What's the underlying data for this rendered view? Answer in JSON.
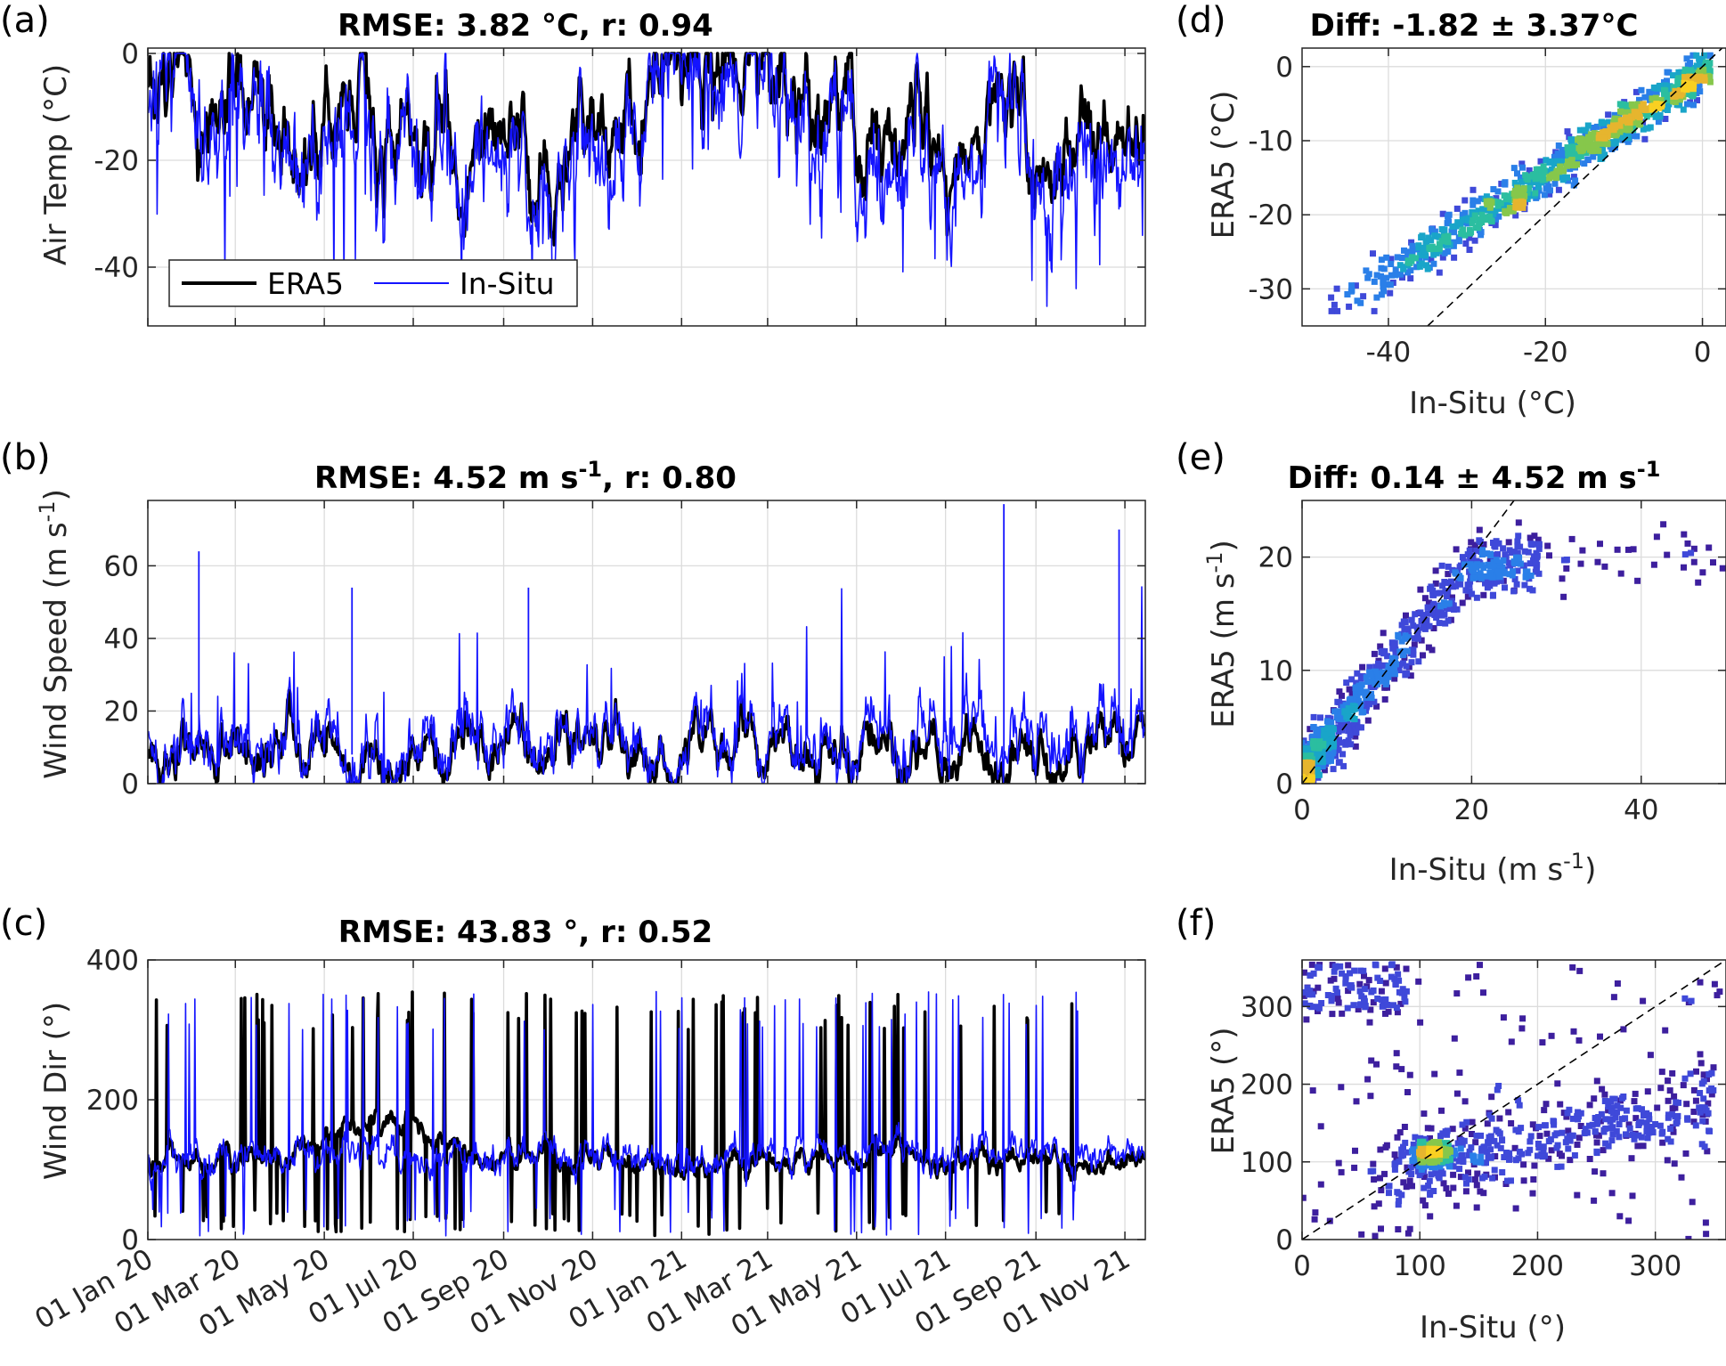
{
  "colors": {
    "era5": "#000000",
    "insitu": "#1414ff",
    "refline": "#000000",
    "density": [
      "#3d1f9e",
      "#3f49d9",
      "#2a7fe8",
      "#19a5c9",
      "#2bbea0",
      "#86c74b",
      "#e6b52e",
      "#f9d022"
    ]
  },
  "panels": {
    "a": {
      "label": "(a)",
      "title": "RMSE: 3.82 °C, r: 0.94",
      "ylabel": "Air Temp (°C)"
    },
    "b": {
      "label": "(b)",
      "title_main": "RMSE: 4.52 m s",
      "title_sup": "-1",
      "title_tail": ", r: 0.80",
      "ylabel_main": "Wind Speed (m s",
      "ylabel_sup": "-1",
      "ylabel_tail": ")"
    },
    "c": {
      "label": "(c)",
      "title": "RMSE: 43.83 °, r: 0.52",
      "ylabel": "Wind Dir (°)"
    },
    "d": {
      "label": "(d)",
      "title": "Diff: -1.82 ± 3.37°C",
      "xlabel": "In-Situ (°C)",
      "ylabel": "ERA5 (°C)"
    },
    "e": {
      "label": "(e)",
      "title_main": "Diff: 0.14 ± 4.52 m s",
      "title_sup": "-1",
      "xlabel_main": "In-Situ (m s",
      "xlabel_sup": "-1",
      "xlabel_tail": ")",
      "ylabel_main": "ERA5 (m s",
      "ylabel_sup": "-1",
      "ylabel_tail": ")"
    },
    "f": {
      "label": "(f)",
      "xlabel": "In-Situ (°)",
      "ylabel": "ERA5 (°)"
    }
  },
  "legend": {
    "era5": "ERA5",
    "insitu": "In-Situ"
  },
  "chart_data": [
    {
      "id": "a",
      "type": "line",
      "title": "RMSE: 3.82 °C, r: 0.94",
      "ylabel": "Air Temp (°C)",
      "xlim": [
        "2020-01-01",
        "2021-11-15"
      ],
      "ylim": [
        -51,
        1
      ],
      "yticks": [
        0,
        -20,
        -40
      ],
      "ytick_labels": [
        "0",
        "-20",
        "-40"
      ],
      "x": [
        "2020-01-01",
        "2020-02-15",
        "2020-04-01",
        "2020-05-15",
        "2020-07-01",
        "2020-08-15",
        "2020-10-01",
        "2020-11-15",
        "2021-01-01",
        "2021-02-15",
        "2021-04-01",
        "2021-05-15",
        "2021-07-01",
        "2021-08-15",
        "2021-10-01",
        "2021-11-15"
      ],
      "series": [
        {
          "name": "ERA5",
          "values": [
            -3,
            -10,
            -14,
            -12,
            -14,
            -18,
            -20,
            -15,
            -2,
            -4,
            -12,
            -16,
            -18,
            -14,
            -20,
            -10
          ]
        },
        {
          "name": "In-Situ",
          "values": [
            -3,
            -12,
            -18,
            -15,
            -16,
            -21,
            -25,
            -18,
            -3,
            -6,
            -15,
            -22,
            -22,
            -16,
            -26,
            -13
          ]
        }
      ],
      "legend": {
        "entries": [
          "ERA5",
          "In-Situ"
        ],
        "placement": "bottom-left"
      }
    },
    {
      "id": "b",
      "type": "line",
      "title": "RMSE: 4.52 m s-1, r: 0.80",
      "ylabel": "Wind Speed (m s-1)",
      "xlim": [
        "2020-01-01",
        "2021-11-15"
      ],
      "ylim": [
        0,
        78
      ],
      "yticks": [
        0,
        20,
        40,
        60
      ],
      "ytick_labels": [
        "0",
        "20",
        "40",
        "60"
      ],
      "x": [
        "2020-01-01",
        "2020-02-15",
        "2020-04-01",
        "2020-05-15",
        "2020-07-01",
        "2020-08-15",
        "2020-10-01",
        "2020-11-15",
        "2021-01-01",
        "2021-02-15",
        "2021-04-01",
        "2021-05-15",
        "2021-07-01",
        "2021-08-15",
        "2021-10-01",
        "2021-11-15"
      ],
      "series": [
        {
          "name": "ERA5",
          "values": [
            8,
            9,
            12,
            8,
            7,
            10,
            11,
            9,
            8,
            9,
            10,
            10,
            8,
            9,
            10,
            14
          ]
        },
        {
          "name": "In-Situ",
          "values": [
            8,
            10,
            14,
            10,
            9,
            12,
            12,
            10,
            9,
            10,
            12,
            12,
            14,
            16,
            13,
            15
          ]
        }
      ],
      "peaks_insitu": [
        {
          "x": "2020-02-05",
          "y": 64
        },
        {
          "x": "2020-05-20",
          "y": 54
        },
        {
          "x": "2020-09-18",
          "y": 54
        },
        {
          "x": "2021-08-10",
          "y": 77
        },
        {
          "x": "2021-10-28",
          "y": 70
        }
      ]
    },
    {
      "id": "c",
      "type": "line",
      "title": "RMSE: 43.83 °, r: 0.52",
      "ylabel": "Wind Dir (°)",
      "xlim": [
        "2020-01-01",
        "2021-11-15"
      ],
      "ylim": [
        0,
        400
      ],
      "yticks": [
        0,
        200,
        400
      ],
      "ytick_labels": [
        "0",
        "200",
        "400"
      ],
      "xtick_labels": [
        "01 Jan 20",
        "01 Mar 20",
        "01 May 20",
        "01 Jul 20",
        "01 Sep 20",
        "01 Nov 20",
        "01 Jan 21",
        "01 Mar 21",
        "01 May 21",
        "01 Jul 21",
        "01 Sep 21",
        "01 Nov 21"
      ],
      "x": [
        "2020-01-01",
        "2020-02-15",
        "2020-04-01",
        "2020-05-15",
        "2020-07-01",
        "2020-08-15",
        "2020-10-01",
        "2020-11-15",
        "2021-01-01",
        "2021-02-15",
        "2021-04-01",
        "2021-05-15",
        "2021-07-01",
        "2021-08-15",
        "2021-10-01",
        "2021-11-15"
      ],
      "series": [
        {
          "name": "ERA5",
          "values": [
            110,
            115,
            112,
            150,
            170,
            110,
            120,
            115,
            110,
            112,
            118,
            120,
            115,
            112,
            110,
            110
          ]
        },
        {
          "name": "In-Situ",
          "values": [
            110,
            118,
            115,
            120,
            118,
            115,
            125,
            120,
            118,
            120,
            125,
            125,
            125,
            125,
            125,
            125
          ]
        }
      ]
    },
    {
      "id": "d",
      "type": "scatter",
      "title": "Diff: -1.82 ± 3.37°C",
      "xlabel": "In-Situ (°C)",
      "ylabel": "ERA5 (°C)",
      "xlim": [
        -51,
        3
      ],
      "ylim": [
        -35,
        2.5
      ],
      "xticks": [
        -40,
        -20,
        0
      ],
      "yticks": [
        0,
        -10,
        -20,
        -30
      ],
      "xtick_labels": [
        "-40",
        "-20",
        "0"
      ],
      "ytick_labels": [
        "0",
        "-10",
        "-20",
        "-30"
      ],
      "mean_diff": -1.82,
      "std_diff": 3.37,
      "reference_line": "1:1 (y = x)",
      "colored_by": "point density"
    },
    {
      "id": "e",
      "type": "scatter",
      "title": "Diff: 0.14 ± 4.52 m s-1",
      "xlabel": "In-Situ (m s-1)",
      "ylabel": "ERA5 (m s-1)",
      "xlim": [
        0,
        50
      ],
      "ylim": [
        0,
        25
      ],
      "xticks": [
        0,
        20,
        40
      ],
      "yticks": [
        0,
        10,
        20
      ],
      "xtick_labels": [
        "0",
        "20",
        "40"
      ],
      "ytick_labels": [
        "0",
        "10",
        "20"
      ],
      "mean_diff": 0.14,
      "std_diff": 4.52,
      "reference_line": "1:1 (y = x)",
      "colored_by": "point density"
    },
    {
      "id": "f",
      "type": "scatter",
      "xlabel": "In-Situ (°)",
      "ylabel": "ERA5 (°)",
      "xlim": [
        0,
        360
      ],
      "ylim": [
        0,
        360
      ],
      "xticks": [
        0,
        100,
        200,
        300
      ],
      "yticks": [
        0,
        100,
        200,
        300
      ],
      "xtick_labels": [
        "0",
        "100",
        "200",
        "300"
      ],
      "ytick_labels": [
        "0",
        "100",
        "200",
        "300"
      ],
      "reference_line": "1:1 (y = x)",
      "colored_by": "point density"
    }
  ]
}
